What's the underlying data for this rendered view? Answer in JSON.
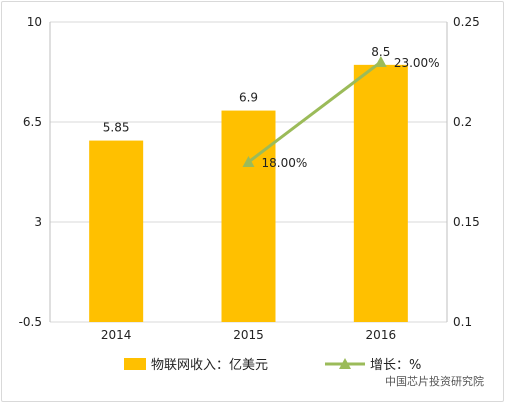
{
  "chart_data": {
    "type": "bar",
    "categories": [
      "2014",
      "2015",
      "2016"
    ],
    "series": [
      {
        "name": "物联网收入：亿美元",
        "type": "bar",
        "axis": "left",
        "values": [
          5.85,
          6.9,
          8.5
        ],
        "labels": [
          "5.85",
          "6.9",
          "8.5"
        ],
        "color": "#FFC000"
      },
      {
        "name": "增长：%",
        "type": "line",
        "axis": "right",
        "points": [
          {
            "category": "2015",
            "value": 0.18,
            "label": "18.00%"
          },
          {
            "category": "2016",
            "value": 0.23,
            "label": "23.00%"
          }
        ],
        "color": "#9BBB59"
      }
    ],
    "y_left": {
      "ticks": [
        "10",
        "6.5",
        "3",
        "-0.5"
      ],
      "ylim": [
        -0.5,
        10
      ]
    },
    "y_right": {
      "ticks": [
        "0.25",
        "0.2",
        "0.15",
        "0.1"
      ],
      "ylim": [
        0.1,
        0.25
      ]
    },
    "grid": "horizontal",
    "legend_position": "bottom"
  },
  "watermark": "中国芯片投资研究院"
}
